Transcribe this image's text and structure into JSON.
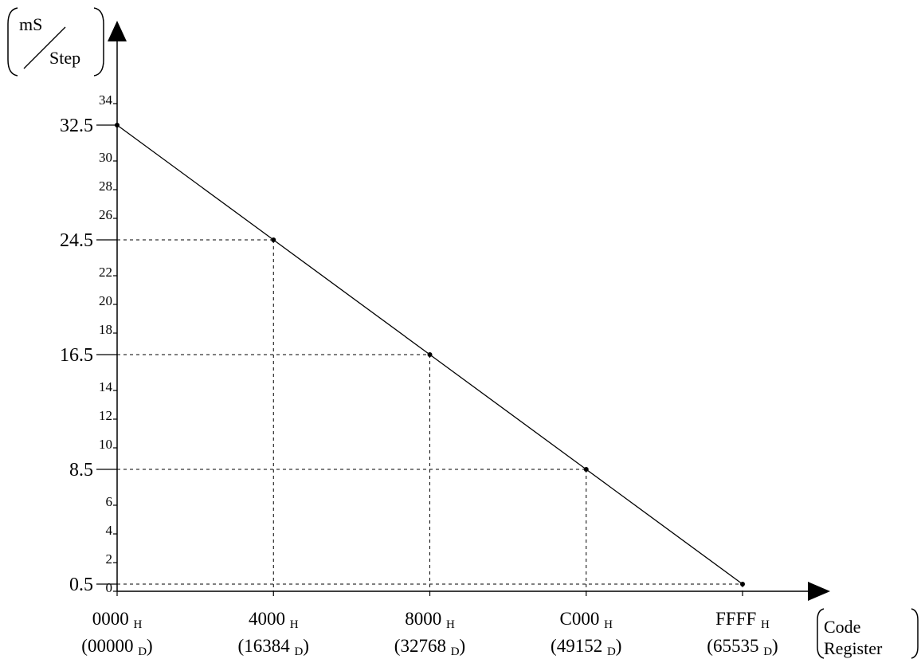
{
  "chart_data": {
    "type": "line",
    "x_ticks": [
      {
        "value": 0,
        "hex": "0000",
        "hex_suffix": "H",
        "dec": "(00000",
        "dec_suffix": "D",
        "dec_close": ")"
      },
      {
        "value": 16384,
        "hex": "4000",
        "hex_suffix": "H",
        "dec": "(16384",
        "dec_suffix": "D",
        "dec_close": ")"
      },
      {
        "value": 32768,
        "hex": "8000",
        "hex_suffix": "H",
        "dec": "(32768",
        "dec_suffix": "D",
        "dec_close": ")"
      },
      {
        "value": 49152,
        "hex": "C000",
        "hex_suffix": "H",
        "dec": "(49152",
        "dec_suffix": "D",
        "dec_close": ")"
      },
      {
        "value": 65535,
        "hex": "FFFF",
        "hex_suffix": "H",
        "dec": "(65535",
        "dec_suffix": "D",
        "dec_close": ")"
      }
    ],
    "y_minor_ticks": [
      "0",
      "2",
      "4",
      "6",
      "10",
      "12",
      "14",
      "18",
      "20",
      "22",
      "26",
      "28",
      "30",
      "34"
    ],
    "y_major_ticks": [
      "0.5",
      "8.5",
      "16.5",
      "24.5",
      "32.5"
    ],
    "series": [
      {
        "x": [
          0,
          16384,
          32768,
          49152,
          65535
        ],
        "y": [
          32.5,
          24.5,
          16.5,
          8.5,
          0.5
        ]
      }
    ],
    "xlim": [
      0,
      65535
    ],
    "ylim": [
      0,
      34
    ],
    "ylabel": {
      "top": "mS",
      "bottom": "Step"
    },
    "xlabel": {
      "line1": "Code",
      "line2": "Register"
    },
    "line_color": "#000000"
  }
}
